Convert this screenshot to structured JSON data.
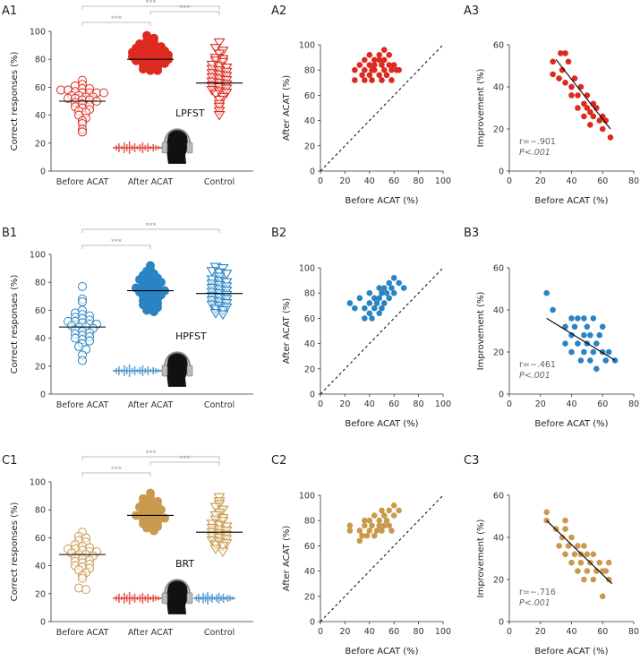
{
  "colors": {
    "red": "#dc2a1f",
    "blue": "#2a84c3",
    "gold": "#c99a4e",
    "axis": "#333333",
    "bracket": "#aaaaaa"
  },
  "chart_data": [
    {
      "id": "A1",
      "panel_label": "A1",
      "type": "scatter",
      "subtype": "dot-column",
      "ylabel": "Correct responses (%)",
      "ylim": [
        0,
        100
      ],
      "yticks": [
        0,
        20,
        40,
        60,
        80,
        100
      ],
      "categories": [
        "Before ACAT",
        "After ACAT",
        "Control"
      ],
      "series": [
        {
          "name": "Before ACAT",
          "marker": "circle-open",
          "color": "#dc2a1f",
          "mean": 50,
          "values": [
            65,
            62,
            61,
            59,
            59,
            58,
            58,
            57,
            56,
            56,
            56,
            56,
            54,
            54,
            53,
            53,
            52,
            52,
            51,
            51,
            50,
            49,
            48,
            47,
            46,
            45,
            44,
            43,
            42,
            40,
            38,
            36,
            34,
            30,
            28
          ]
        },
        {
          "name": "After ACAT",
          "marker": "circle-filled",
          "color": "#dc2a1f",
          "mean": 80,
          "values": [
            97,
            95,
            93,
            92,
            91,
            90,
            90,
            89,
            88,
            88,
            87,
            86,
            86,
            85,
            85,
            84,
            84,
            83,
            83,
            82,
            82,
            81,
            81,
            80,
            80,
            79,
            79,
            78,
            78,
            77,
            76,
            75,
            74,
            73,
            72,
            72
          ]
        },
        {
          "name": "Control",
          "marker": "triangle-open",
          "color": "#dc2a1f",
          "mean": 63,
          "values": [
            92,
            88,
            86,
            84,
            81,
            80,
            79,
            78,
            76,
            75,
            74,
            73,
            72,
            71,
            70,
            69,
            68,
            67,
            66,
            65,
            64,
            63,
            62,
            61,
            60,
            59,
            58,
            57,
            56,
            55,
            53,
            51,
            48,
            46,
            43,
            40
          ]
        }
      ],
      "significance": [
        {
          "from": "Before ACAT",
          "to": "Control",
          "label": "***"
        },
        {
          "from": "Before ACAT",
          "to": "After ACAT",
          "label": "***"
        },
        {
          "from": "After ACAT",
          "to": "Control",
          "label": "***"
        }
      ],
      "test_label": "LPFST",
      "bars": [
        "red"
      ]
    },
    {
      "id": "A2",
      "panel_label": "A2",
      "type": "scatter",
      "xlabel": "Before ACAT (%)",
      "ylabel": "After ACAT (%)",
      "xlim": [
        0,
        100
      ],
      "ylim": [
        0,
        100
      ],
      "xticks": [
        0,
        20,
        40,
        60,
        80,
        100
      ],
      "yticks": [
        0,
        20,
        40,
        60,
        80,
        100
      ],
      "color": "#dc2a1f",
      "identity_line": true,
      "x": [
        28,
        28,
        32,
        34,
        36,
        36,
        36,
        40,
        40,
        40,
        42,
        42,
        44,
        44,
        44,
        48,
        48,
        48,
        50,
        50,
        52,
        52,
        52,
        54,
        56,
        56,
        58,
        58,
        60,
        62,
        64
      ],
      "y": [
        72,
        80,
        84,
        76,
        72,
        80,
        88,
        76,
        84,
        92,
        72,
        80,
        88,
        80,
        84,
        76,
        88,
        92,
        72,
        84,
        80,
        88,
        96,
        76,
        84,
        92,
        72,
        80,
        84,
        80,
        80
      ]
    },
    {
      "id": "A3",
      "panel_label": "A3",
      "type": "scatter",
      "xlabel": "Before ACAT (%)",
      "ylabel": "Improvement (%)",
      "xlim": [
        0,
        80
      ],
      "ylim": [
        0,
        60
      ],
      "xticks": [
        0,
        20,
        40,
        60,
        80
      ],
      "yticks": [
        0,
        20,
        40,
        60
      ],
      "color": "#dc2a1f",
      "r_label": "r=−.901",
      "p_label": "P<.001",
      "fit": {
        "x1": 30,
        "y1": 53,
        "x2": 65,
        "y2": 20
      },
      "x": [
        28,
        28,
        32,
        33,
        34,
        36,
        36,
        38,
        40,
        40,
        42,
        44,
        44,
        46,
        48,
        48,
        50,
        50,
        52,
        52,
        54,
        54,
        56,
        58,
        60,
        60,
        62,
        65
      ],
      "y": [
        52,
        46,
        44,
        56,
        48,
        56,
        42,
        52,
        40,
        36,
        44,
        36,
        30,
        40,
        32,
        26,
        36,
        30,
        28,
        22,
        32,
        26,
        30,
        24,
        26,
        20,
        24,
        16
      ]
    },
    {
      "id": "B1",
      "panel_label": "B1",
      "type": "scatter",
      "subtype": "dot-column",
      "ylabel": "Correct responses (%)",
      "ylim": [
        0,
        100
      ],
      "yticks": [
        0,
        20,
        40,
        60,
        80,
        100
      ],
      "categories": [
        "Before ACAT",
        "After ACAT",
        "Control"
      ],
      "series": [
        {
          "name": "Before ACAT",
          "marker": "circle-open",
          "color": "#2a84c3",
          "mean": 48,
          "values": [
            77,
            68,
            66,
            60,
            58,
            57,
            56,
            55,
            54,
            53,
            52,
            52,
            51,
            50,
            50,
            49,
            48,
            48,
            47,
            46,
            45,
            44,
            43,
            42,
            41,
            40,
            39,
            38,
            36,
            34,
            32,
            28,
            24
          ]
        },
        {
          "name": "After ACAT",
          "marker": "circle-filled",
          "color": "#2a84c3",
          "mean": 74,
          "values": [
            92,
            89,
            88,
            86,
            85,
            84,
            83,
            82,
            81,
            80,
            80,
            79,
            78,
            77,
            76,
            76,
            75,
            74,
            74,
            73,
            72,
            72,
            71,
            70,
            69,
            68,
            67,
            66,
            65,
            64,
            63,
            62,
            60,
            59
          ]
        },
        {
          "name": "Control",
          "marker": "triangle-open",
          "color": "#2a84c3",
          "mean": 72,
          "values": [
            91,
            90,
            88,
            87,
            86,
            84,
            82,
            81,
            80,
            79,
            78,
            77,
            76,
            75,
            74,
            73,
            72,
            71,
            70,
            69,
            68,
            67,
            66,
            65,
            64,
            63,
            62,
            61,
            60,
            58,
            57
          ]
        }
      ],
      "significance": [
        {
          "from": "Before ACAT",
          "to": "Control",
          "label": "***"
        },
        {
          "from": "Before ACAT",
          "to": "After ACAT",
          "label": "***"
        }
      ],
      "test_label": "HPFST",
      "bars": [
        "blue"
      ]
    },
    {
      "id": "B2",
      "panel_label": "B2",
      "type": "scatter",
      "xlabel": "Before ACAT (%)",
      "ylabel": "After ACAT (%)",
      "xlim": [
        0,
        100
      ],
      "ylim": [
        0,
        100
      ],
      "xticks": [
        0,
        20,
        40,
        60,
        80,
        100
      ],
      "yticks": [
        0,
        20,
        40,
        60,
        80,
        100
      ],
      "color": "#2a84c3",
      "identity_line": true,
      "x": [
        24,
        28,
        32,
        36,
        36,
        40,
        40,
        40,
        42,
        44,
        44,
        46,
        48,
        48,
        48,
        50,
        50,
        52,
        52,
        54,
        56,
        56,
        58,
        60,
        60,
        64,
        68
      ],
      "y": [
        72,
        68,
        76,
        60,
        68,
        64,
        72,
        80,
        60,
        68,
        76,
        72,
        64,
        76,
        84,
        68,
        80,
        72,
        84,
        80,
        76,
        88,
        84,
        80,
        92,
        88,
        84
      ]
    },
    {
      "id": "B3",
      "panel_label": "B3",
      "type": "scatter",
      "xlabel": "Before ACAT (%)",
      "ylabel": "Improvement (%)",
      "xlim": [
        0,
        80
      ],
      "ylim": [
        0,
        60
      ],
      "xticks": [
        0,
        20,
        40,
        60,
        80
      ],
      "yticks": [
        0,
        20,
        40,
        60
      ],
      "color": "#2a84c3",
      "r_label": "r=−.461",
      "p_label": "P<.001",
      "fit": {
        "x1": 24,
        "y1": 36,
        "x2": 68,
        "y2": 16
      },
      "x": [
        24,
        28,
        36,
        36,
        40,
        40,
        40,
        42,
        44,
        44,
        46,
        48,
        48,
        48,
        50,
        50,
        52,
        52,
        54,
        54,
        56,
        56,
        58,
        60,
        60,
        62,
        64,
        68
      ],
      "y": [
        48,
        40,
        32,
        24,
        36,
        28,
        20,
        32,
        24,
        36,
        16,
        28,
        20,
        36,
        24,
        32,
        16,
        28,
        20,
        36,
        12,
        24,
        28,
        20,
        32,
        16,
        20,
        16
      ]
    },
    {
      "id": "C1",
      "panel_label": "C1",
      "type": "scatter",
      "subtype": "dot-column",
      "ylabel": "Correct responses (%)",
      "ylim": [
        0,
        100
      ],
      "yticks": [
        0,
        20,
        40,
        60,
        80,
        100
      ],
      "categories": [
        "Before ACAT",
        "After ACAT",
        "Control"
      ],
      "series": [
        {
          "name": "Before ACAT",
          "marker": "circle-open",
          "color": "#c99a4e",
          "mean": 48,
          "values": [
            64,
            61,
            60,
            58,
            57,
            55,
            54,
            53,
            52,
            52,
            51,
            50,
            50,
            49,
            48,
            48,
            47,
            46,
            45,
            44,
            43,
            42,
            41,
            40,
            39,
            38,
            37,
            35,
            33,
            31,
            24,
            23
          ]
        },
        {
          "name": "After ACAT",
          "marker": "circle-filled",
          "color": "#c99a4e",
          "mean": 76,
          "values": [
            92,
            90,
            88,
            87,
            86,
            85,
            84,
            83,
            82,
            81,
            80,
            80,
            79,
            78,
            77,
            76,
            76,
            75,
            74,
            74,
            73,
            72,
            71,
            70,
            69,
            68,
            67,
            65
          ]
        },
        {
          "name": "Control",
          "marker": "triangle-open",
          "color": "#c99a4e",
          "mean": 64,
          "values": [
            89,
            86,
            84,
            82,
            80,
            78,
            76,
            74,
            73,
            72,
            70,
            69,
            68,
            67,
            66,
            65,
            64,
            63,
            62,
            61,
            60,
            59,
            58,
            57,
            56,
            55,
            54,
            52,
            50
          ]
        }
      ],
      "significance": [
        {
          "from": "Before ACAT",
          "to": "Control",
          "label": "***"
        },
        {
          "from": "Before ACAT",
          "to": "After ACAT",
          "label": "***"
        },
        {
          "from": "After ACAT",
          "to": "Control",
          "label": "***"
        }
      ],
      "test_label": "BRT",
      "bars": [
        "red",
        "blue"
      ]
    },
    {
      "id": "C2",
      "panel_label": "C2",
      "type": "scatter",
      "xlabel": "Before ACAT (%)",
      "ylabel": "After ACAT (%)",
      "xlim": [
        0,
        100
      ],
      "ylim": [
        0,
        100
      ],
      "xticks": [
        0,
        20,
        40,
        60,
        80,
        100
      ],
      "yticks": [
        0,
        20,
        40,
        60,
        80,
        100
      ],
      "color": "#c99a4e",
      "identity_line": true,
      "x": [
        24,
        24,
        32,
        32,
        34,
        36,
        36,
        38,
        40,
        40,
        42,
        44,
        44,
        46,
        48,
        48,
        50,
        50,
        52,
        52,
        54,
        56,
        56,
        58,
        60,
        60,
        64
      ],
      "y": [
        76,
        72,
        64,
        72,
        68,
        76,
        80,
        68,
        72,
        80,
        76,
        68,
        84,
        72,
        76,
        80,
        72,
        88,
        76,
        84,
        80,
        76,
        88,
        72,
        84,
        92,
        88
      ]
    },
    {
      "id": "C3",
      "panel_label": "C3",
      "type": "scatter",
      "xlabel": "Before ACAT (%)",
      "ylabel": "Improvement (%)",
      "xlim": [
        0,
        80
      ],
      "ylim": [
        0,
        60
      ],
      "xticks": [
        0,
        20,
        40,
        60,
        80
      ],
      "yticks": [
        0,
        20,
        40,
        60
      ],
      "color": "#c99a4e",
      "r_label": "r=−.716",
      "p_label": "P<.001",
      "fit": {
        "x1": 24,
        "y1": 48,
        "x2": 66,
        "y2": 18
      },
      "x": [
        24,
        24,
        30,
        32,
        34,
        36,
        36,
        36,
        38,
        40,
        40,
        42,
        44,
        44,
        46,
        46,
        48,
        48,
        50,
        50,
        52,
        54,
        54,
        56,
        58,
        60,
        60,
        62,
        64,
        64
      ],
      "y": [
        52,
        48,
        44,
        36,
        40,
        48,
        32,
        44,
        36,
        40,
        28,
        32,
        36,
        24,
        32,
        28,
        36,
        20,
        32,
        24,
        28,
        32,
        20,
        24,
        28,
        24,
        12,
        24,
        20,
        28
      ]
    }
  ]
}
